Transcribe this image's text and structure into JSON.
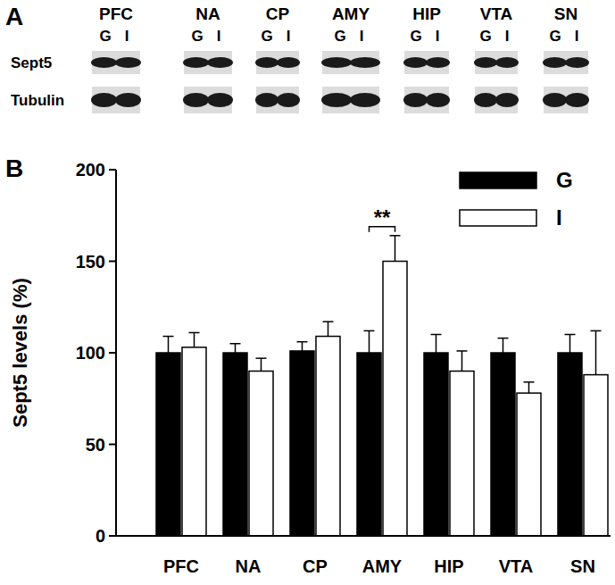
{
  "panel_labels": [
    "A",
    "B"
  ],
  "blot": {
    "regions": [
      "PFC",
      "NA",
      "CP",
      "AMY",
      "HIP",
      "VTA",
      "SN"
    ],
    "conditions": [
      "G",
      "I"
    ],
    "rows": [
      "Sept5",
      "Tubulin"
    ]
  },
  "chart_data": {
    "type": "bar",
    "categories": [
      "PFC",
      "NA",
      "CP",
      "AMY",
      "HIP",
      "VTA",
      "SN"
    ],
    "series": [
      {
        "name": "G",
        "color": "#000000",
        "values": [
          100,
          100,
          101,
          100,
          100,
          100,
          100
        ],
        "errors": [
          9,
          5,
          5,
          12,
          10,
          8,
          10
        ]
      },
      {
        "name": "I",
        "color": "#ffffff",
        "values": [
          103,
          90,
          109,
          150,
          90,
          78,
          88
        ],
        "errors": [
          8,
          7,
          8,
          14,
          11,
          6,
          24
        ]
      }
    ],
    "y_label": "Sept5 levels (%)",
    "ylim": [
      0,
      200
    ],
    "yticks": [
      0,
      50,
      100,
      150,
      200
    ],
    "legend": "top-right",
    "annotations": [
      {
        "text": "**",
        "category": "AMY"
      }
    ]
  }
}
